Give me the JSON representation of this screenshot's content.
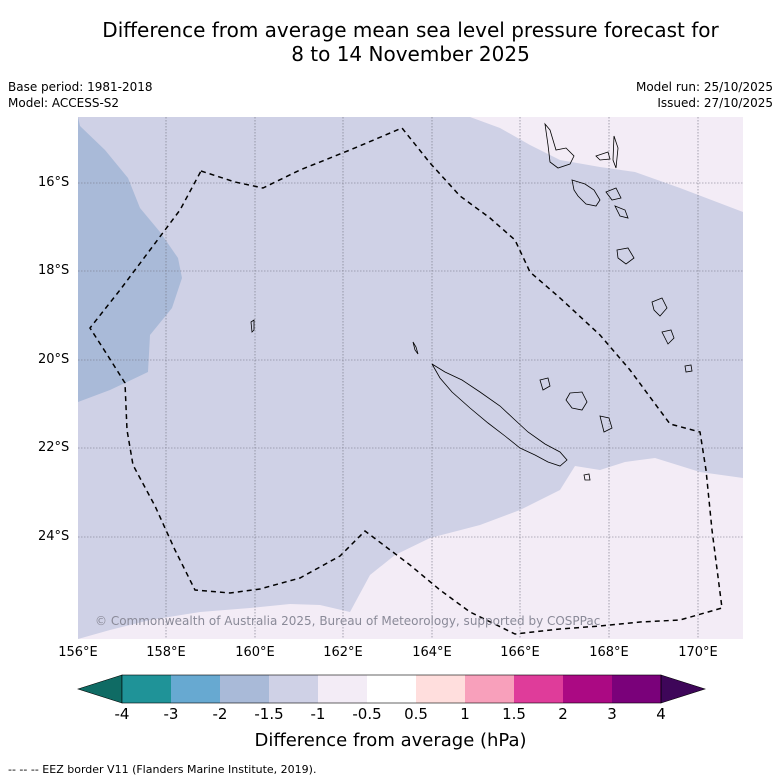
{
  "title_line1": "Difference from average mean sea level pressure forecast for",
  "title_line2": "8 to 14 November 2025",
  "meta": {
    "base_period": "Base period: 1981-2018",
    "model": "Model: ACCESS-S2",
    "model_run": "Model run: 25/10/2025",
    "issued": "Issued: 27/10/2025"
  },
  "lat_ticks": [
    "16°S",
    "18°S",
    "20°S",
    "22°S",
    "24°S"
  ],
  "lon_ticks": [
    "156°E",
    "158°E",
    "160°E",
    "162°E",
    "164°E",
    "166°E",
    "168°E",
    "170°E"
  ],
  "copyright": "© Commonwealth of Australia 2025, Bureau of Meteorology, supported by COSPPac",
  "colorbar": {
    "labels": [
      "-4",
      "-3",
      "-2",
      "-1.5",
      "-1",
      "-0.5",
      "0.5",
      "1",
      "1.5",
      "2",
      "3",
      "4"
    ],
    "colors": [
      "#0f6b64",
      "#1f9398",
      "#67a9d1",
      "#a9bad8",
      "#cfd1e6",
      "#f3ecf6",
      "#ffffff",
      "#ffdedd",
      "#f8a0bb",
      "#df3c9a",
      "#ab0983",
      "#7a017a",
      "#3e0659"
    ],
    "title": "Difference from average (hPa)"
  },
  "map_colors": {
    "neg_2_to_1_5": "#a9bad8",
    "neg_1_5_to_1": "#cfd1e6",
    "neg_1_to_0_5": "#f3ecf6"
  },
  "footer": "-- -- -- EEZ border V11 (Flanders Marine Institute, 2019)."
}
